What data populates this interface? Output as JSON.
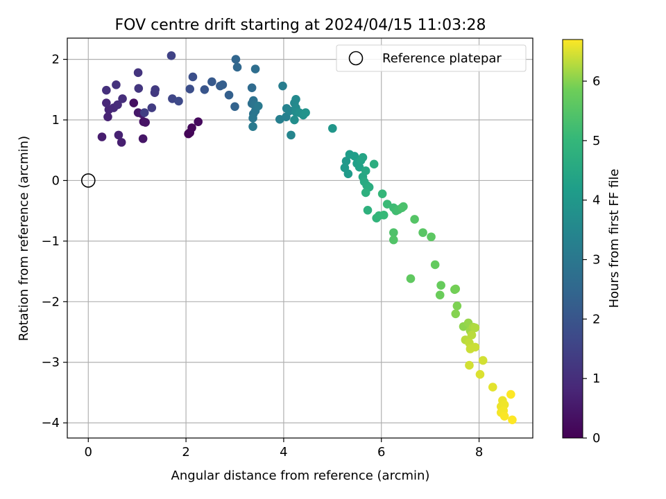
{
  "chart_data": {
    "type": "scatter",
    "title": "FOV centre drift starting at 2024/04/15 11:03:28",
    "xlabel": "Angular distance from reference (arcmin)",
    "ylabel": "Rotation from reference (arcmin)",
    "xlim": [
      -0.43,
      9.1
    ],
    "ylim": [
      -4.25,
      2.35
    ],
    "xticks": [
      "0",
      "2",
      "4",
      "6",
      "8"
    ],
    "yticks": [
      "2",
      "1",
      "0",
      "−1",
      "−2",
      "−3",
      "−4"
    ],
    "grid": true,
    "legend": {
      "placement": "top-right",
      "entries": [
        "Reference platepar"
      ]
    },
    "reference_point": {
      "x": 0,
      "y": 0
    },
    "colorbar": {
      "label": "Hours from first FF file",
      "range": [
        0,
        6.7
      ],
      "ticks": [
        "0",
        "1",
        "2",
        "3",
        "4",
        "5",
        "6"
      ],
      "colormap": "viridis"
    },
    "points": [
      [
        2.05,
        0.77,
        0.05
      ],
      [
        2.08,
        0.79,
        0.1
      ],
      [
        2.12,
        0.87,
        0.15
      ],
      [
        2.25,
        0.97,
        0.2
      ],
      [
        0.93,
        1.28,
        0.3
      ],
      [
        1.13,
        0.97,
        0.35
      ],
      [
        1.17,
        0.96,
        0.4
      ],
      [
        1.12,
        0.69,
        0.45
      ],
      [
        1.02,
        1.12,
        0.5
      ],
      [
        1.1,
        1.1,
        0.55
      ],
      [
        0.28,
        0.72,
        0.6
      ],
      [
        0.68,
        0.63,
        0.65
      ],
      [
        0.62,
        0.75,
        0.7
      ],
      [
        0.4,
        1.05,
        0.75
      ],
      [
        0.42,
        1.17,
        0.8
      ],
      [
        0.37,
        1.28,
        0.85
      ],
      [
        0.52,
        1.2,
        0.9
      ],
      [
        0.6,
        1.25,
        0.95
      ],
      [
        0.7,
        1.35,
        1.0
      ],
      [
        0.37,
        1.49,
        1.05
      ],
      [
        0.57,
        1.58,
        1.1
      ],
      [
        1.02,
        1.78,
        1.15
      ],
      [
        1.03,
        1.52,
        1.2
      ],
      [
        1.36,
        1.45,
        1.25
      ],
      [
        1.37,
        1.5,
        1.3
      ],
      [
        1.3,
        1.2,
        1.35
      ],
      [
        1.15,
        1.12,
        1.4
      ],
      [
        1.7,
        2.06,
        1.5
      ],
      [
        1.72,
        1.35,
        1.6
      ],
      [
        1.85,
        1.31,
        1.7
      ],
      [
        2.08,
        1.51,
        1.8
      ],
      [
        2.14,
        1.71,
        1.85
      ],
      [
        2.38,
        1.5,
        2.0
      ],
      [
        2.53,
        1.63,
        2.1
      ],
      [
        2.7,
        1.56,
        2.2
      ],
      [
        2.75,
        1.58,
        2.25
      ],
      [
        2.88,
        1.41,
        2.3
      ],
      [
        3.0,
        1.22,
        2.4
      ],
      [
        3.02,
        2.0,
        2.45
      ],
      [
        3.05,
        1.87,
        2.5
      ],
      [
        3.35,
        1.53,
        2.6
      ],
      [
        3.42,
        1.84,
        2.7
      ],
      [
        3.35,
        1.27,
        2.75
      ],
      [
        3.38,
        1.32,
        2.8
      ],
      [
        3.38,
        1.1,
        2.85
      ],
      [
        3.4,
        1.25,
        2.9
      ],
      [
        3.42,
        1.15,
        2.95
      ],
      [
        3.37,
        1.03,
        3.0
      ],
      [
        3.48,
        1.23,
        3.05
      ],
      [
        3.37,
        0.89,
        3.1
      ],
      [
        3.98,
        1.56,
        3.2
      ],
      [
        3.92,
        1.01,
        3.25
      ],
      [
        4.05,
        1.05,
        3.3
      ],
      [
        4.06,
        1.19,
        3.35
      ],
      [
        4.12,
        1.15,
        3.4
      ],
      [
        4.15,
        0.75,
        3.45
      ],
      [
        4.22,
        1.28,
        3.5
      ],
      [
        4.25,
        1.34,
        3.55
      ],
      [
        4.25,
        1.2,
        3.6
      ],
      [
        4.25,
        1.13,
        3.65
      ],
      [
        4.22,
        1.0,
        3.7
      ],
      [
        4.32,
        1.12,
        3.75
      ],
      [
        4.4,
        1.08,
        3.8
      ],
      [
        4.45,
        1.12,
        3.85
      ],
      [
        5.0,
        0.86,
        3.95
      ],
      [
        5.28,
        0.32,
        4.0
      ],
      [
        5.25,
        0.21,
        4.05
      ],
      [
        5.32,
        0.11,
        4.1
      ],
      [
        5.35,
        0.43,
        4.15
      ],
      [
        5.45,
        0.4,
        4.2
      ],
      [
        5.5,
        0.28,
        4.25
      ],
      [
        5.55,
        0.22,
        4.3
      ],
      [
        5.58,
        0.33,
        4.35
      ],
      [
        5.62,
        0.38,
        4.4
      ],
      [
        5.62,
        0.06,
        4.45
      ],
      [
        5.68,
        0.16,
        4.5
      ],
      [
        5.65,
        -0.02,
        4.55
      ],
      [
        5.7,
        -0.08,
        4.6
      ],
      [
        5.75,
        -0.11,
        4.65
      ],
      [
        5.85,
        0.27,
        4.7
      ],
      [
        5.68,
        -0.2,
        4.75
      ],
      [
        5.72,
        -0.49,
        4.8
      ],
      [
        5.9,
        -0.62,
        4.9
      ],
      [
        5.95,
        -0.58,
        4.95
      ],
      [
        6.02,
        -0.22,
        5.0
      ],
      [
        6.05,
        -0.57,
        5.05
      ],
      [
        6.12,
        -0.39,
        5.1
      ],
      [
        6.25,
        -0.45,
        5.15
      ],
      [
        6.3,
        -0.5,
        5.2
      ],
      [
        6.35,
        -0.48,
        5.25
      ],
      [
        6.42,
        -0.45,
        5.3
      ],
      [
        6.45,
        -0.43,
        5.35
      ],
      [
        6.25,
        -0.86,
        5.4
      ],
      [
        6.25,
        -0.98,
        5.45
      ],
      [
        6.68,
        -0.64,
        5.5
      ],
      [
        6.85,
        -0.86,
        5.55
      ],
      [
        7.02,
        -0.93,
        5.6
      ],
      [
        6.6,
        -1.62,
        5.65
      ],
      [
        7.1,
        -1.39,
        5.7
      ],
      [
        7.22,
        -1.73,
        5.75
      ],
      [
        7.2,
        -1.89,
        5.8
      ],
      [
        7.5,
        -1.8,
        5.85
      ],
      [
        7.52,
        -1.79,
        5.9
      ],
      [
        7.55,
        -2.07,
        5.95
      ],
      [
        7.52,
        -2.2,
        6.0
      ],
      [
        7.68,
        -2.41,
        6.05
      ],
      [
        7.78,
        -2.35,
        6.1
      ],
      [
        7.82,
        -2.48,
        6.15
      ],
      [
        7.88,
        -2.42,
        6.2
      ],
      [
        7.92,
        -2.43,
        6.25
      ],
      [
        7.85,
        -2.55,
        6.3
      ],
      [
        7.72,
        -2.63,
        6.3
      ],
      [
        7.8,
        -2.68,
        6.35
      ],
      [
        7.82,
        -2.78,
        6.4
      ],
      [
        7.92,
        -2.75,
        6.4
      ],
      [
        7.8,
        -3.05,
        6.45
      ],
      [
        8.08,
        -2.97,
        6.45
      ],
      [
        8.02,
        -3.2,
        6.5
      ],
      [
        8.28,
        -3.41,
        6.55
      ],
      [
        8.48,
        -3.63,
        6.6
      ],
      [
        8.45,
        -3.73,
        6.6
      ],
      [
        8.52,
        -3.7,
        6.62
      ],
      [
        8.5,
        -3.8,
        6.65
      ],
      [
        8.45,
        -3.83,
        6.65
      ],
      [
        8.52,
        -3.89,
        6.68
      ],
      [
        8.65,
        -3.53,
        6.7
      ],
      [
        8.68,
        -3.95,
        6.7
      ]
    ]
  }
}
